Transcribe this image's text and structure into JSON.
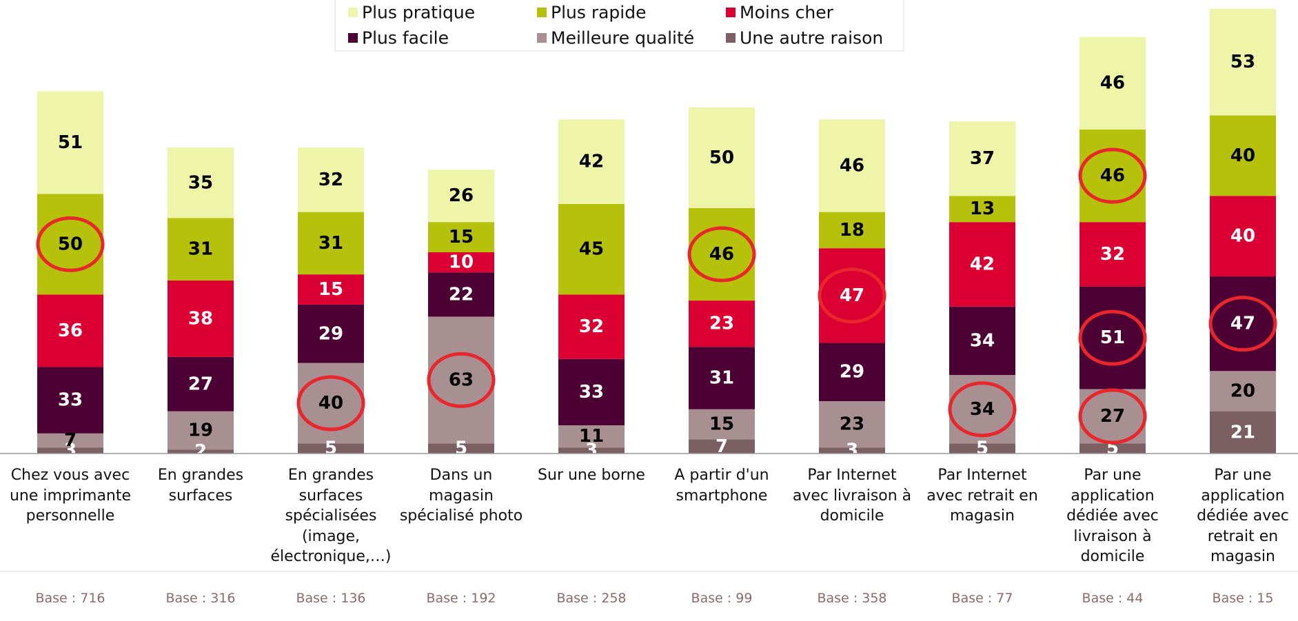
{
  "chart_data": {
    "type": "stacked_bar",
    "categories": [
      "Chez vous avec une imprimante personnelle",
      "En grandes surfaces",
      "En grandes surfaces spécialisées (image, électronique,…)",
      "Dans un magasin spécialisé photo",
      "Sur une borne",
      "A partir d'un smartphone",
      "Par Internet avec livraison à domicile",
      "Par Internet avec retrait en magasin",
      "Par une application dédiée avec livraison à domicile",
      "Par une application dédiée avec retrait en magasin"
    ],
    "base_labels": [
      "Base : 716",
      "Base : 316",
      "Base : 136",
      "Base : 192",
      "Base : 258",
      "Base : 99",
      "Base : 358",
      "Base : 77",
      "Base : 44",
      "Base : 15"
    ],
    "series": [
      {
        "name": "Une autre raison",
        "color": "#7b5f62",
        "label_color": "#ffffff",
        "values": [
          3,
          2,
          5,
          5,
          3,
          7,
          3,
          5,
          5,
          21
        ],
        "highlight": [
          false,
          false,
          false,
          false,
          false,
          false,
          false,
          false,
          false,
          false
        ]
      },
      {
        "name": "Meilleure qualité",
        "color": "#a89092",
        "label_color": "#000000",
        "values": [
          7,
          19,
          40,
          63,
          11,
          15,
          23,
          34,
          27,
          20
        ],
        "highlight": [
          false,
          false,
          true,
          true,
          false,
          false,
          false,
          true,
          true,
          false
        ]
      },
      {
        "name": "Plus facile",
        "color": "#4d0033",
        "label_color": "#ffffff",
        "values": [
          33,
          27,
          29,
          22,
          33,
          31,
          29,
          34,
          51,
          47
        ],
        "highlight": [
          false,
          false,
          false,
          false,
          false,
          false,
          false,
          false,
          true,
          true
        ]
      },
      {
        "name": "Moins cher",
        "color": "#dc0032",
        "label_color": "#ffffff",
        "values": [
          36,
          38,
          15,
          10,
          32,
          23,
          47,
          42,
          32,
          40
        ],
        "highlight": [
          false,
          false,
          false,
          false,
          false,
          false,
          true,
          false,
          false,
          false
        ]
      },
      {
        "name": "Plus rapide",
        "color": "#b5c10a",
        "label_color": "#000000",
        "values": [
          50,
          31,
          31,
          15,
          45,
          46,
          18,
          13,
          46,
          40
        ],
        "highlight": [
          true,
          false,
          false,
          false,
          false,
          true,
          false,
          false,
          true,
          false
        ]
      },
      {
        "name": "Plus pratique",
        "color": "#eef5a8",
        "label_color": "#000000",
        "values": [
          51,
          35,
          32,
          26,
          42,
          50,
          46,
          37,
          46,
          53
        ],
        "highlight": [
          false,
          false,
          false,
          false,
          false,
          false,
          false,
          false,
          false,
          false
        ]
      }
    ],
    "legend_order": [
      5,
      4,
      3,
      2,
      1,
      0
    ]
  }
}
